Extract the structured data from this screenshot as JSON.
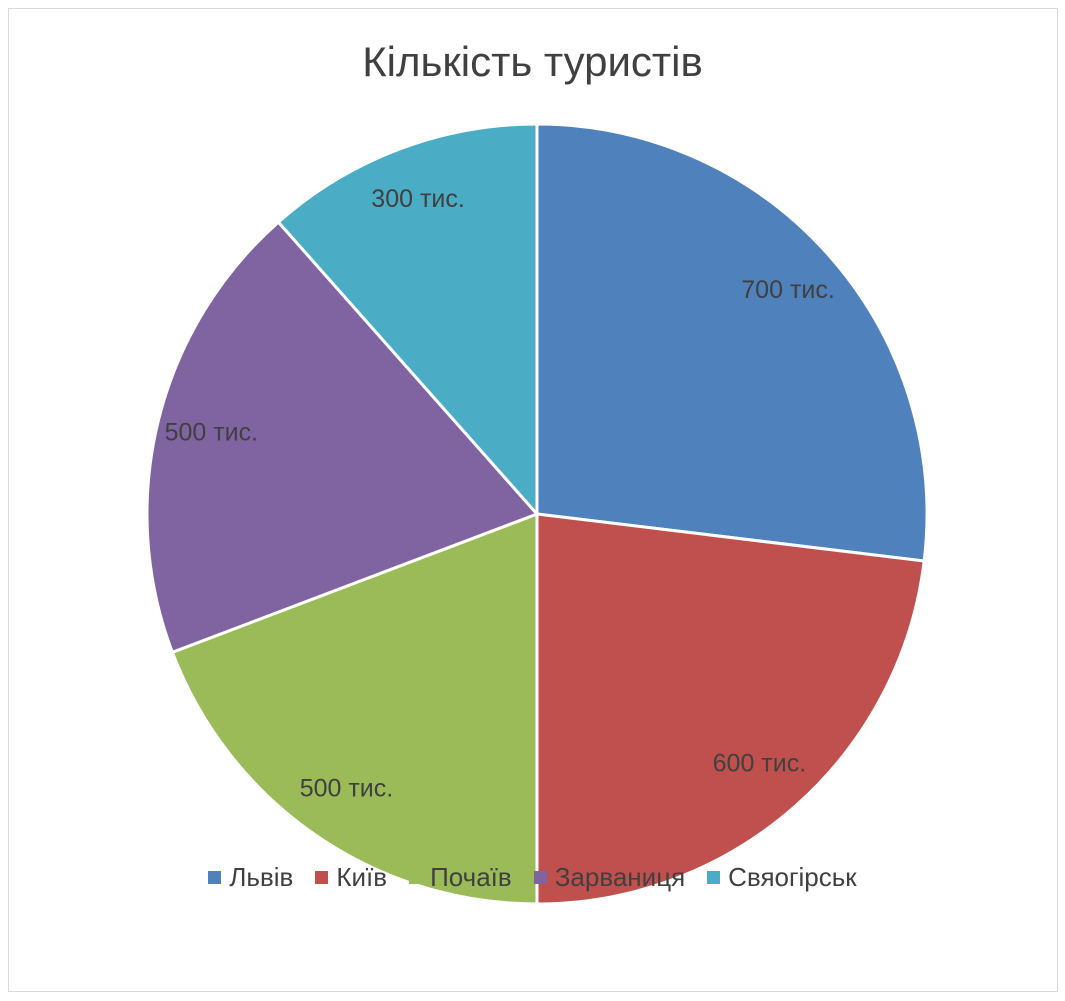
{
  "chart_data": {
    "type": "pie",
    "title": "Кількість туристів",
    "categories": [
      "Львів",
      "Київ",
      "Почаїв",
      "Зарваниця",
      "Свяогірськ"
    ],
    "values": [
      700,
      600,
      500,
      500,
      300
    ],
    "data_labels": [
      "700 тис.",
      "600 тис.",
      "500 тис.",
      "500 тис.",
      "300 тис."
    ],
    "colors": [
      "#4F81BD",
      "#C0504D",
      "#9BBB59",
      "#8064A2",
      "#4BACC6"
    ],
    "legend_position": "bottom"
  }
}
